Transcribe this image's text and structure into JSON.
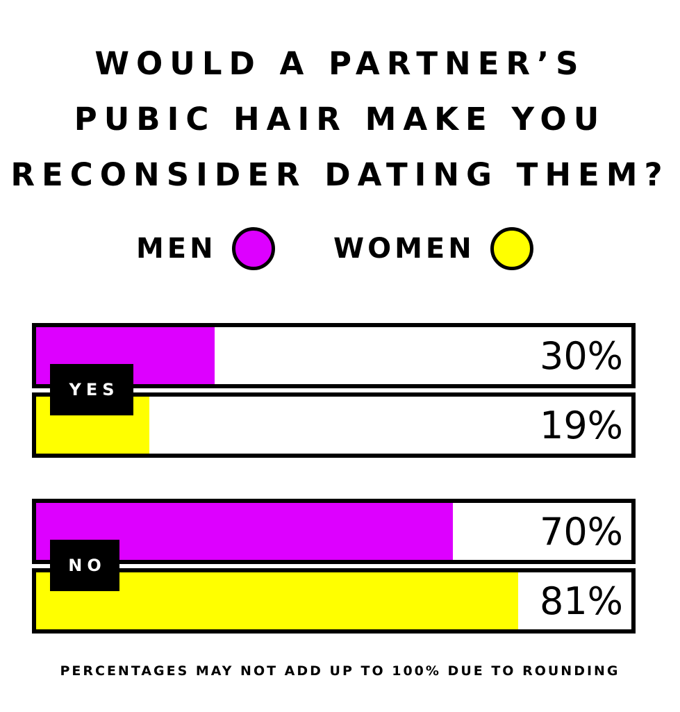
{
  "chart_data": {
    "type": "bar",
    "orientation": "horizontal",
    "title_lines": [
      "WOULD A PARTNER’S",
      "PUBIC HAIR MAKE YOU",
      "RECONSIDER DATING THEM?"
    ],
    "categories": [
      "YES",
      "NO"
    ],
    "series": [
      {
        "name": "MEN",
        "color": "#dd00ff",
        "values": [
          30,
          70
        ],
        "labels": [
          "30%",
          "70%"
        ]
      },
      {
        "name": "WOMEN",
        "color": "#ffff00",
        "values": [
          19,
          81
        ],
        "labels": [
          "19%",
          "81%"
        ]
      }
    ],
    "xlim": [
      0,
      100
    ],
    "unit": "%",
    "legend_position": "top",
    "grid": false,
    "footnote": "PERCENTAGES MAY NOT ADD UP TO 100% DUE TO ROUNDING"
  }
}
